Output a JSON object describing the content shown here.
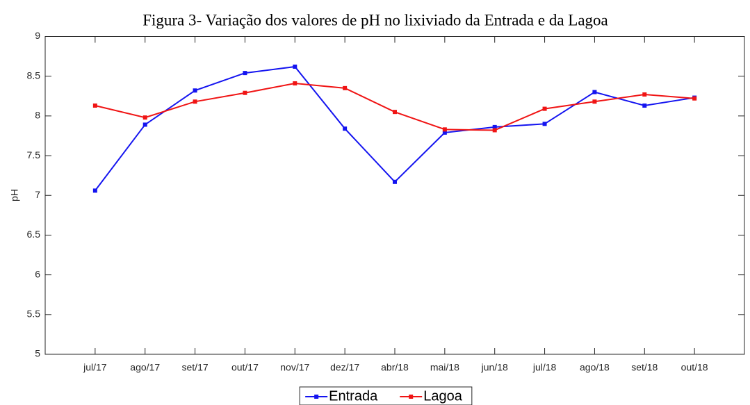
{
  "chart_data": {
    "type": "line",
    "title": "Figura 3- Variação dos valores de pH no lixiviado da Entrada e da Lagoa",
    "ylabel": "pH",
    "categories": [
      "jul/17",
      "ago/17",
      "set/17",
      "out/17",
      "nov/17",
      "dez/17",
      "abr/18",
      "mai/18",
      "jun/18",
      "jul/18",
      "ago/18",
      "set/18",
      "out/18"
    ],
    "series": [
      {
        "name": "Entrada",
        "color": "#1414f0",
        "values": [
          7.06,
          7.89,
          8.32,
          8.54,
          8.62,
          7.84,
          7.17,
          7.79,
          7.86,
          7.9,
          8.3,
          8.13,
          8.23
        ]
      },
      {
        "name": "Lagoa",
        "color": "#f01414",
        "values": [
          8.13,
          7.98,
          8.18,
          8.29,
          8.41,
          8.35,
          8.05,
          7.83,
          7.82,
          8.09,
          8.18,
          8.27,
          8.22
        ]
      }
    ],
    "ylim": [
      5,
      9
    ],
    "yticks": [
      5,
      5.5,
      6,
      6.5,
      7,
      7.5,
      8,
      8.5,
      9
    ],
    "grid": false,
    "legend": "bottom"
  }
}
